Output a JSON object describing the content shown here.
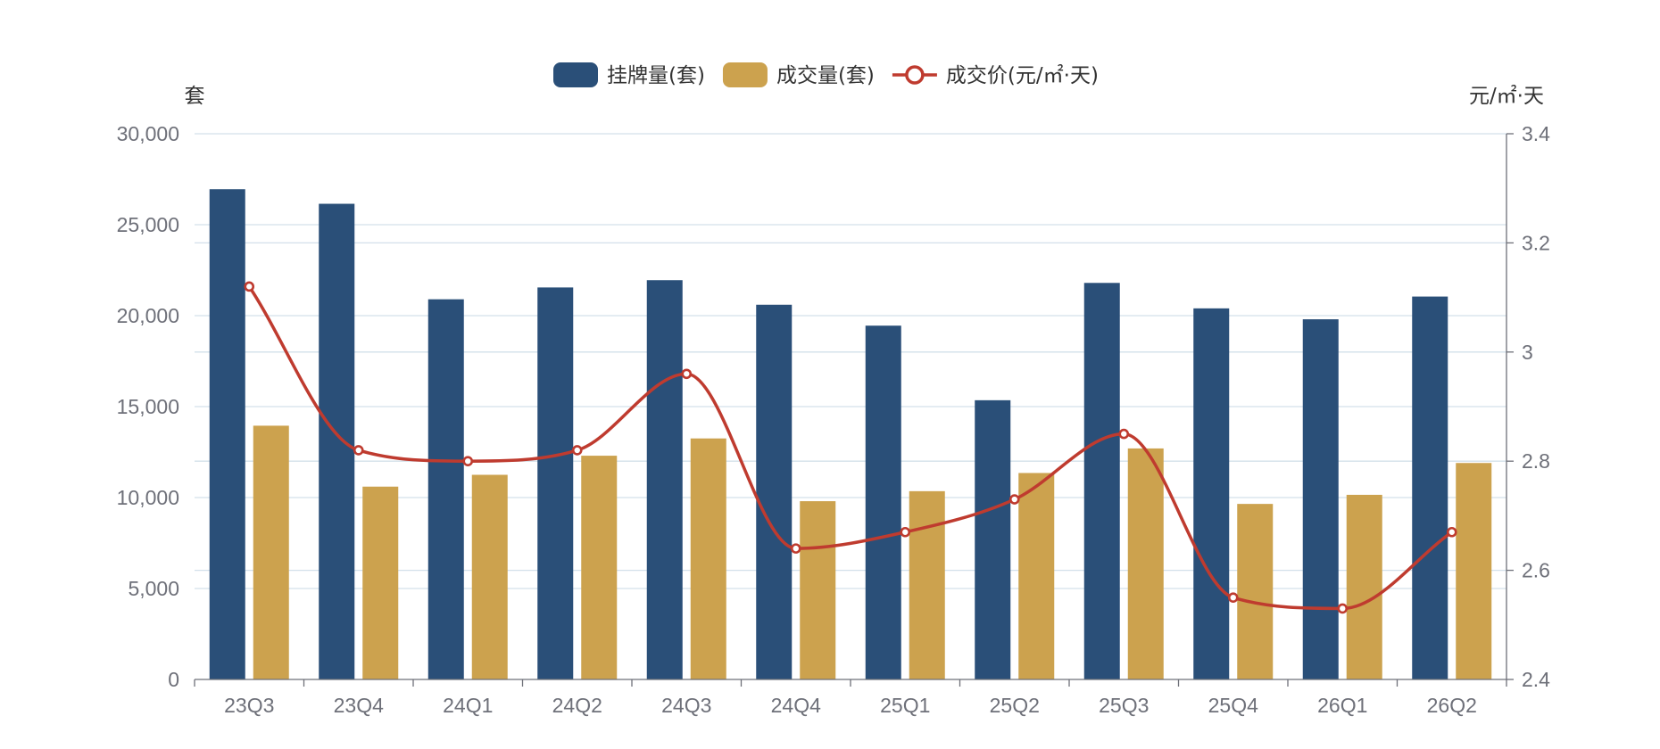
{
  "chart_data": {
    "type": "bar",
    "categories": [
      "23Q3",
      "23Q4",
      "24Q1",
      "24Q2",
      "24Q3",
      "24Q4",
      "25Q1",
      "25Q2",
      "25Q3",
      "25Q4",
      "26Q1",
      "26Q2"
    ],
    "series": [
      {
        "name": "挂牌量(套)",
        "type": "bar",
        "axis": "left",
        "color": "#2a4f78",
        "values": [
          26950,
          26150,
          20900,
          21550,
          21950,
          20600,
          19450,
          15350,
          21800,
          20400,
          19800,
          21050
        ]
      },
      {
        "name": "成交量(套)",
        "type": "bar",
        "axis": "left",
        "color": "#cca24e",
        "values": [
          13950,
          10600,
          11250,
          12300,
          13250,
          9800,
          10350,
          11350,
          12700,
          9650,
          10150,
          11900
        ]
      },
      {
        "name": "成交价(元/㎡·天)",
        "type": "line",
        "axis": "right",
        "color": "#bf3b2f",
        "smooth": true,
        "values": [
          3.12,
          2.82,
          2.8,
          2.82,
          2.96,
          2.64,
          2.67,
          2.73,
          2.85,
          2.55,
          2.53,
          2.67
        ]
      }
    ],
    "left_axis": {
      "unit": "套",
      "ylim": [
        0,
        30000
      ],
      "ticks": [
        0,
        5000,
        10000,
        15000,
        20000,
        25000,
        30000
      ],
      "tick_labels": [
        "0",
        "5,000",
        "10,000",
        "15,000",
        "20,000",
        "25,000",
        "30,000"
      ]
    },
    "right_axis": {
      "unit": "元/㎡·天",
      "ylim": [
        2.4,
        3.4
      ],
      "ticks": [
        2.4,
        2.6,
        2.8,
        3,
        3.2,
        3.4
      ],
      "tick_labels": [
        "2.4",
        "2.6",
        "2.8",
        "3",
        "3.2",
        "3.4"
      ]
    },
    "grid": true,
    "legend_position": "top-center"
  }
}
